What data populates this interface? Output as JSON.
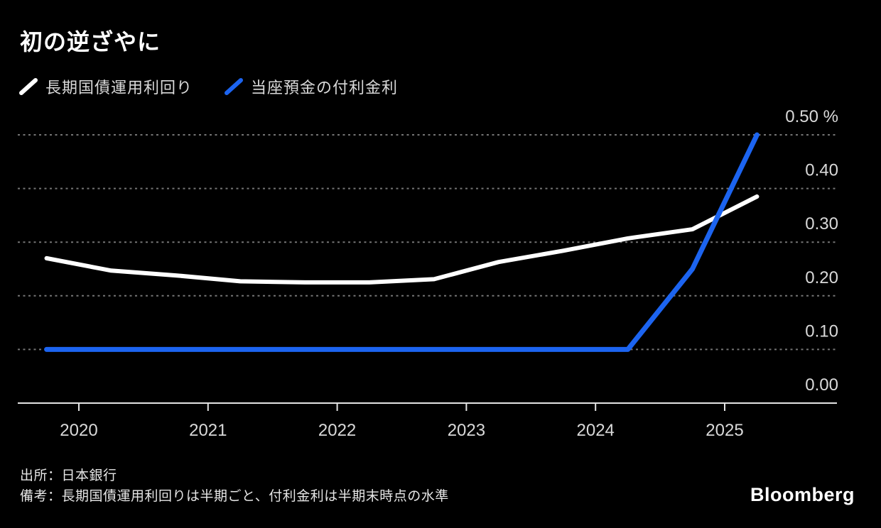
{
  "title": "初の逆ざやに",
  "legend": [
    {
      "label": "長期国債運用利回り",
      "color": "#ffffff"
    },
    {
      "label": "当座預金の付利金利",
      "color": "#1c64f0"
    }
  ],
  "chart_data": {
    "type": "line",
    "title": "初の逆ざやに",
    "xlabel": "",
    "ylabel": "%",
    "ylim": [
      0.0,
      0.5
    ],
    "xlim": [
      2019.53,
      2025.87
    ],
    "grid": "horizontal-dotted",
    "legend_position": "top-left",
    "x": [
      2019.75,
      2020.25,
      2020.75,
      2021.25,
      2021.75,
      2022.25,
      2022.75,
      2023.25,
      2023.75,
      2024.25,
      2024.75,
      2025.25
    ],
    "series": [
      {
        "name": "長期国債運用利回り",
        "color": "#ffffff",
        "width": 6,
        "values": [
          0.27,
          0.247,
          0.238,
          0.227,
          0.225,
          0.225,
          0.231,
          0.263,
          0.284,
          0.307,
          0.324,
          0.385
        ]
      },
      {
        "name": "当座預金の付利金利",
        "color": "#1c64f0",
        "width": 7,
        "values": [
          0.1,
          0.1,
          0.1,
          0.1,
          0.1,
          0.1,
          0.1,
          0.1,
          0.1,
          0.1,
          0.25,
          0.5
        ]
      }
    ],
    "x_ticks": [
      2020,
      2021,
      2022,
      2023,
      2024,
      2025
    ],
    "y_ticks": [
      {
        "value": 0.5,
        "label": "0.50 %"
      },
      {
        "value": 0.4,
        "label": "0.40"
      },
      {
        "value": 0.3,
        "label": "0.30"
      },
      {
        "value": 0.2,
        "label": "0.20"
      },
      {
        "value": 0.1,
        "label": "0.10"
      },
      {
        "value": 0.0,
        "label": "0.00"
      }
    ]
  },
  "footer": {
    "source": "出所：日本銀行",
    "note": "備考：長期国債運用利回りは半期ごと、付利金利は半期末時点の水準"
  },
  "branding": "Bloomberg"
}
